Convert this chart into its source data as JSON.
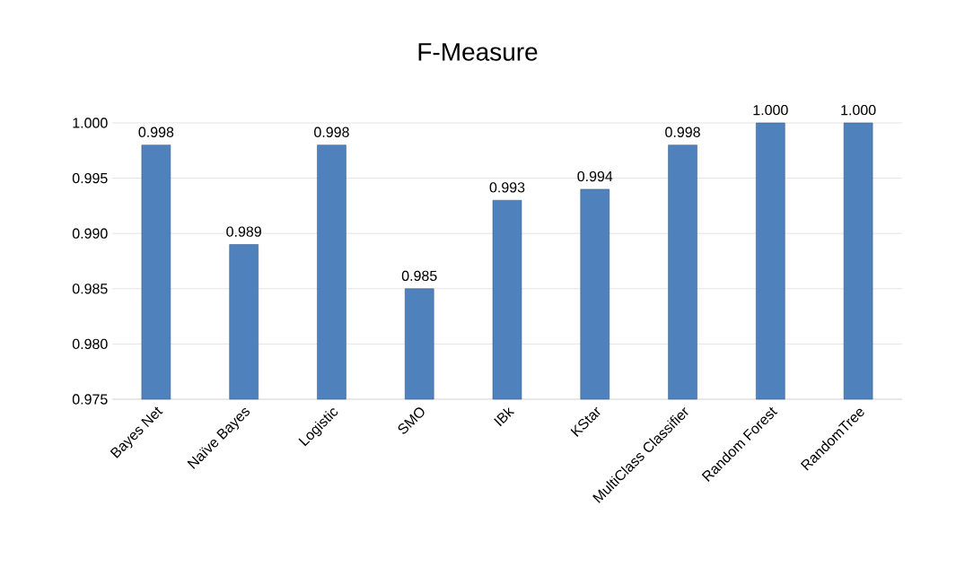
{
  "chart_data": {
    "type": "bar",
    "title": "F-Measure",
    "categories": [
      "Bayes Net",
      "Naïve Bayes",
      "Logistic",
      "SMO",
      "IBk",
      "KStar",
      "MultiClass Classifier",
      "Random Forest",
      "RandomTree"
    ],
    "values": [
      0.998,
      0.989,
      0.998,
      0.985,
      0.993,
      0.994,
      0.998,
      1.0,
      1.0
    ],
    "value_labels": [
      "0.998",
      "0.989",
      "0.998",
      "0.985",
      "0.993",
      "0.994",
      "0.998",
      "1.000",
      "1.000"
    ],
    "color": "#4f81bd",
    "ylim": [
      0.975,
      1.0
    ],
    "yticks": [
      {
        "value": 0.975,
        "label": "0.975"
      },
      {
        "value": 0.98,
        "label": "0.980"
      },
      {
        "value": 0.985,
        "label": "0.985"
      },
      {
        "value": 0.99,
        "label": "0.990"
      },
      {
        "value": 0.995,
        "label": "0.995"
      },
      {
        "value": 1.0,
        "label": "1.000"
      }
    ],
    "grid": "y"
  }
}
